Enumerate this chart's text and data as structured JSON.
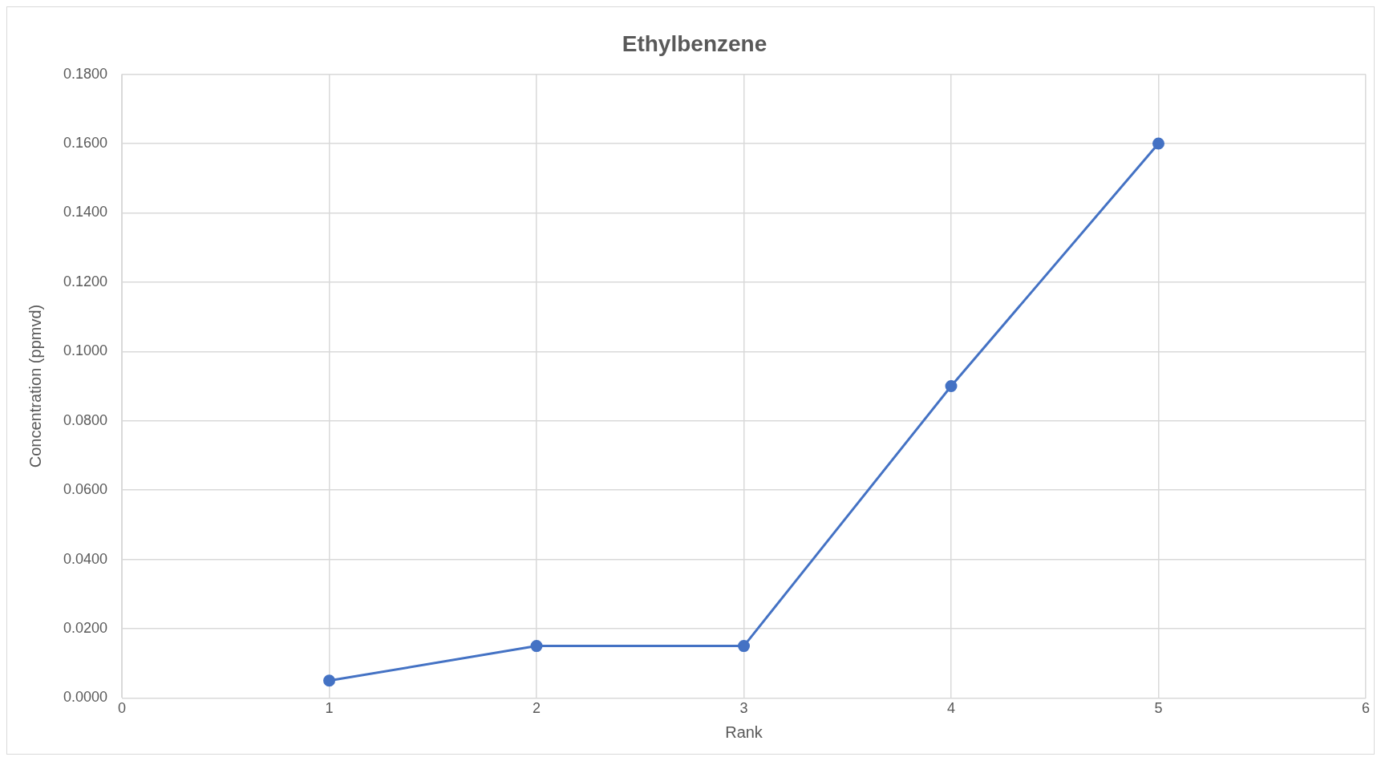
{
  "chart_data": {
    "type": "line",
    "title": "Ethylbenzene",
    "xlabel": "Rank",
    "ylabel": "Concentration (ppmvd)",
    "series": [
      {
        "color": "#4472c4",
        "x": [
          1,
          2,
          3,
          4,
          5
        ],
        "values": [
          0.005,
          0.015,
          0.015,
          0.09,
          0.16
        ]
      }
    ],
    "xlim": [
      0,
      6
    ],
    "xticks": [
      0,
      1,
      2,
      3,
      4,
      5,
      6
    ],
    "ylim": [
      0,
      0.18
    ],
    "yticks": [
      {
        "value": 0,
        "label": "0.0000"
      },
      {
        "value": 0.02,
        "label": "0.0200"
      },
      {
        "value": 0.04,
        "label": "0.0400"
      },
      {
        "value": 0.06,
        "label": "0.0600"
      },
      {
        "value": 0.08,
        "label": "0.0800"
      },
      {
        "value": 0.1,
        "label": "0.1000"
      },
      {
        "value": 0.12,
        "label": "0.1200"
      },
      {
        "value": 0.14,
        "label": "0.1400"
      },
      {
        "value": 0.16,
        "label": "0.1600"
      },
      {
        "value": 0.18,
        "label": "0.1800"
      }
    ],
    "grid": true,
    "legend": false,
    "marker": "circle",
    "line_style": "solid"
  }
}
